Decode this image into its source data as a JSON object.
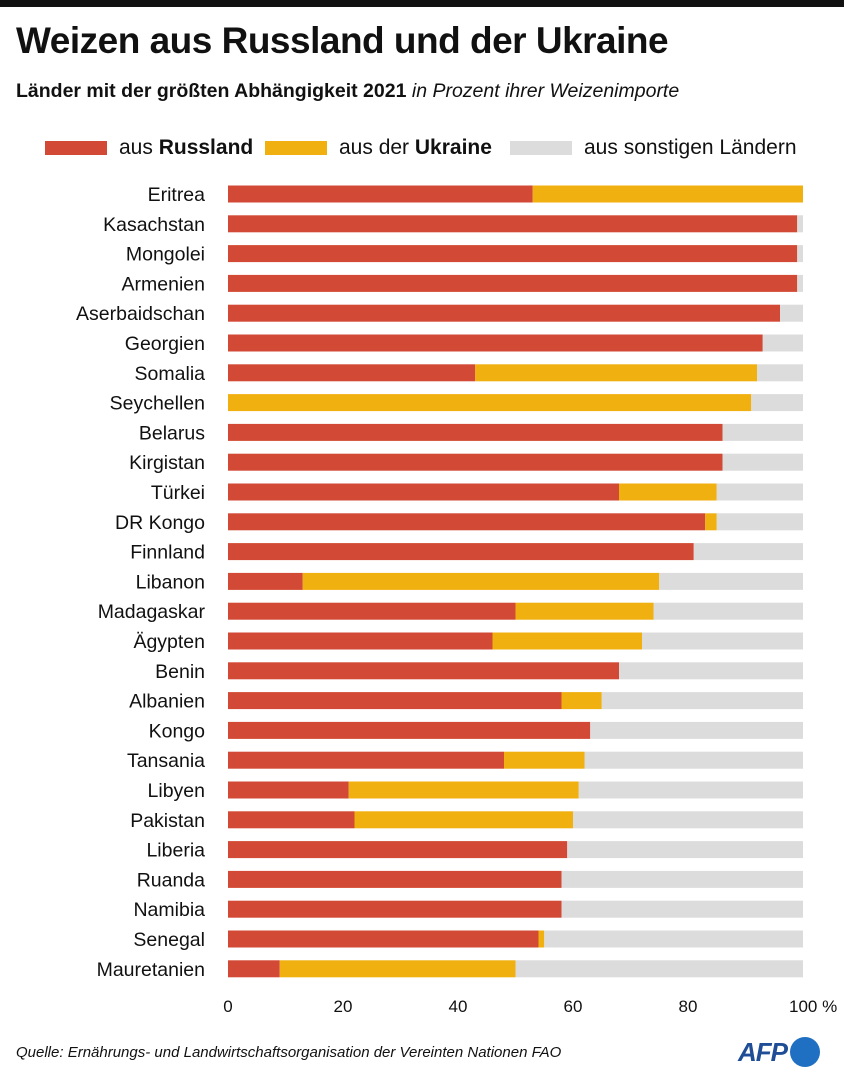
{
  "title": "Weizen aus Russland und der Ukraine",
  "subtitle": {
    "main": "Länder mit der größten Abhängigkeit 2021",
    "unit": "in Prozent ihrer Weizenimporte"
  },
  "legend": [
    {
      "prefix": "aus ",
      "bold": "Russland",
      "color": "#d24a35"
    },
    {
      "prefix": "aus der ",
      "bold": "Ukraine",
      "color": "#f0b010"
    },
    {
      "prefix": "aus sonstigen Ländern",
      "bold": "",
      "color": "#dcdcdc"
    }
  ],
  "chart_data": {
    "type": "bar",
    "orientation": "horizontal",
    "stacked": true,
    "categories": [
      "Eritrea",
      "Kasachstan",
      "Mongolei",
      "Armenien",
      "Aserbaidschan",
      "Georgien",
      "Somalia",
      "Seychellen",
      "Belarus",
      "Kirgistan",
      "Türkei",
      "DR Kongo",
      "Finnland",
      "Libanon",
      "Madagaskar",
      "Ägypten",
      "Benin",
      "Albanien",
      "Kongo",
      "Tansania",
      "Libyen",
      "Pakistan",
      "Liberia",
      "Ruanda",
      "Namibia",
      "Senegal",
      "Mauretanien"
    ],
    "series": [
      {
        "name": "aus Russland",
        "color": "#d24a35",
        "values": [
          53,
          99,
          99,
          99,
          96,
          93,
          43,
          0,
          86,
          86,
          68,
          83,
          81,
          13,
          50,
          46,
          68,
          58,
          63,
          48,
          21,
          22,
          59,
          58,
          58,
          54,
          9
        ]
      },
      {
        "name": "aus der Ukraine",
        "color": "#f0b010",
        "values": [
          47,
          0,
          0,
          0,
          0,
          0,
          49,
          91,
          0,
          0,
          17,
          2,
          0,
          62,
          24,
          26,
          0,
          7,
          0,
          14,
          40,
          38,
          0,
          0,
          0,
          1,
          41
        ]
      },
      {
        "name": "aus sonstigen Ländern",
        "color": "#dcdcdc",
        "values": [
          0,
          1,
          1,
          1,
          4,
          7,
          8,
          9,
          14,
          14,
          15,
          15,
          19,
          25,
          26,
          28,
          32,
          35,
          37,
          38,
          39,
          40,
          41,
          42,
          42,
          45,
          50
        ]
      }
    ],
    "x_ticks": [
      "0",
      "20",
      "40",
      "60",
      "80",
      "100 %"
    ],
    "xlim": [
      0,
      100
    ],
    "grid": false,
    "legend_position": "top"
  },
  "source": "Quelle: Ernährungs- und Landwirtschaftsorganisation der Vereinten Nationen FAO",
  "logo_text": "AFP"
}
